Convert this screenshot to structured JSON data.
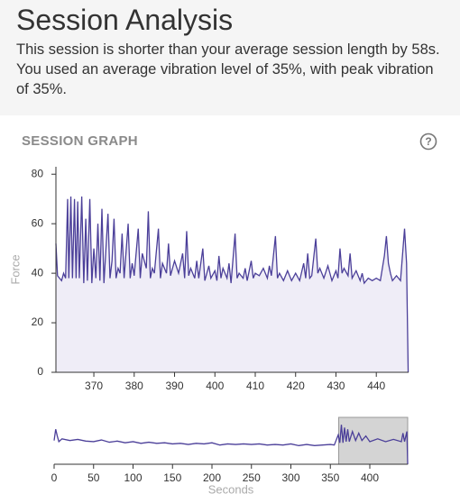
{
  "header": {
    "title": "Session Analysis",
    "description": "This session is shorter than your average session length by 58s. You used an average vibration level of 35%, with peak vibration of 35%.",
    "help_icon": "?"
  },
  "chart_data": [
    {
      "type": "line",
      "title": "SESSION GRAPH",
      "ylabel": "Force",
      "color": "#4b3f99",
      "fill": "#efedf7",
      "xlim": [
        360.6,
        448
      ],
      "ylim": [
        0,
        83
      ],
      "xticks": [
        370,
        380,
        390,
        400,
        410,
        420,
        430,
        440
      ],
      "yticks": [
        0,
        20,
        40,
        60,
        80
      ],
      "x": [
        360.6,
        361,
        362,
        362.5,
        363,
        363.5,
        363.8,
        364.3,
        364.7,
        365.2,
        365.6,
        366,
        366.4,
        367,
        367.5,
        368,
        368.4,
        369,
        369.5,
        370,
        370.5,
        371,
        371.5,
        372,
        372.5,
        373.5,
        374,
        374.5,
        375,
        375.5,
        376,
        376.5,
        377,
        377.5,
        378.5,
        379,
        379.5,
        380,
        381,
        381.5,
        382,
        383,
        383.5,
        384,
        384.5,
        385,
        386,
        386.5,
        387,
        388,
        388.5,
        389,
        390,
        391,
        392,
        392.5,
        393,
        393.5,
        394,
        395,
        395.5,
        396,
        397,
        397.5,
        398.5,
        399,
        400,
        400.5,
        401,
        401.5,
        402,
        403,
        403.5,
        404,
        405,
        405.5,
        406,
        407,
        407.5,
        408,
        409,
        409.5,
        410,
        411,
        412,
        413,
        413.5,
        414,
        415,
        415.5,
        416,
        417,
        418,
        419,
        420,
        421,
        422,
        422.5,
        423,
        423.5,
        424,
        425,
        425.5,
        426,
        427,
        428,
        429,
        430,
        430.5,
        431,
        431.5,
        432,
        433,
        433.5,
        434,
        435,
        436,
        436.5,
        437,
        438,
        439,
        440,
        441,
        442,
        442.5,
        443,
        443.5,
        444,
        445,
        446,
        447,
        447.5,
        447.9
      ],
      "values": [
        52,
        39,
        37,
        40,
        38,
        70,
        38,
        71,
        38,
        70,
        38,
        69,
        38,
        71,
        36,
        62,
        37,
        70,
        36,
        50,
        38,
        60,
        37,
        66,
        36,
        64,
        38,
        45,
        62,
        38,
        42,
        40,
        56,
        38,
        60,
        38,
        44,
        39,
        58,
        38,
        48,
        42,
        65,
        38,
        42,
        40,
        58,
        38,
        44,
        40,
        52,
        39,
        45,
        40,
        48,
        38,
        57,
        39,
        42,
        38,
        45,
        38,
        50,
        37,
        43,
        38,
        41,
        37,
        47,
        38,
        42,
        38,
        44,
        36,
        56,
        38,
        40,
        38,
        42,
        37,
        45,
        38,
        40,
        39,
        42,
        38,
        43,
        39,
        55,
        38,
        40,
        37,
        41,
        37,
        40,
        37,
        44,
        38,
        48,
        38,
        39,
        54,
        40,
        42,
        38,
        43,
        37,
        41,
        38,
        50,
        40,
        42,
        39,
        48,
        38,
        41,
        37,
        40,
        36,
        38,
        37,
        38,
        37,
        47,
        55,
        44,
        40,
        37,
        39,
        37,
        58,
        44,
        0
      ]
    },
    {
      "type": "line",
      "xlabel": "Seconds",
      "color": "#4b3f99",
      "xlim": [
        0,
        448
      ],
      "ylim": [
        0,
        83
      ],
      "xticks": [
        0,
        50,
        100,
        150,
        200,
        250,
        300,
        350,
        400
      ],
      "x": [
        0,
        2,
        4,
        6,
        10,
        20,
        30,
        40,
        50,
        60,
        70,
        80,
        90,
        100,
        110,
        120,
        130,
        140,
        150,
        160,
        170,
        180,
        190,
        200,
        210,
        220,
        230,
        240,
        250,
        260,
        270,
        280,
        290,
        300,
        310,
        320,
        330,
        340,
        350,
        355,
        360,
        362,
        364,
        366,
        368,
        370,
        372,
        374,
        378,
        382,
        386,
        390,
        395,
        400,
        410,
        420,
        430,
        440,
        442,
        444,
        447,
        448
      ],
      "values": [
        42,
        62,
        50,
        40,
        45,
        42,
        44,
        41,
        40,
        43,
        39,
        41,
        38,
        40,
        37,
        39,
        37,
        38,
        36,
        37,
        35,
        37,
        36,
        38,
        34,
        36,
        35,
        36,
        35,
        36,
        34,
        35,
        34,
        36,
        33,
        35,
        33,
        34,
        35,
        34,
        52,
        38,
        70,
        38,
        65,
        40,
        62,
        40,
        58,
        42,
        55,
        42,
        50,
        40,
        45,
        40,
        44,
        40,
        55,
        40,
        58,
        0
      ]
    }
  ]
}
